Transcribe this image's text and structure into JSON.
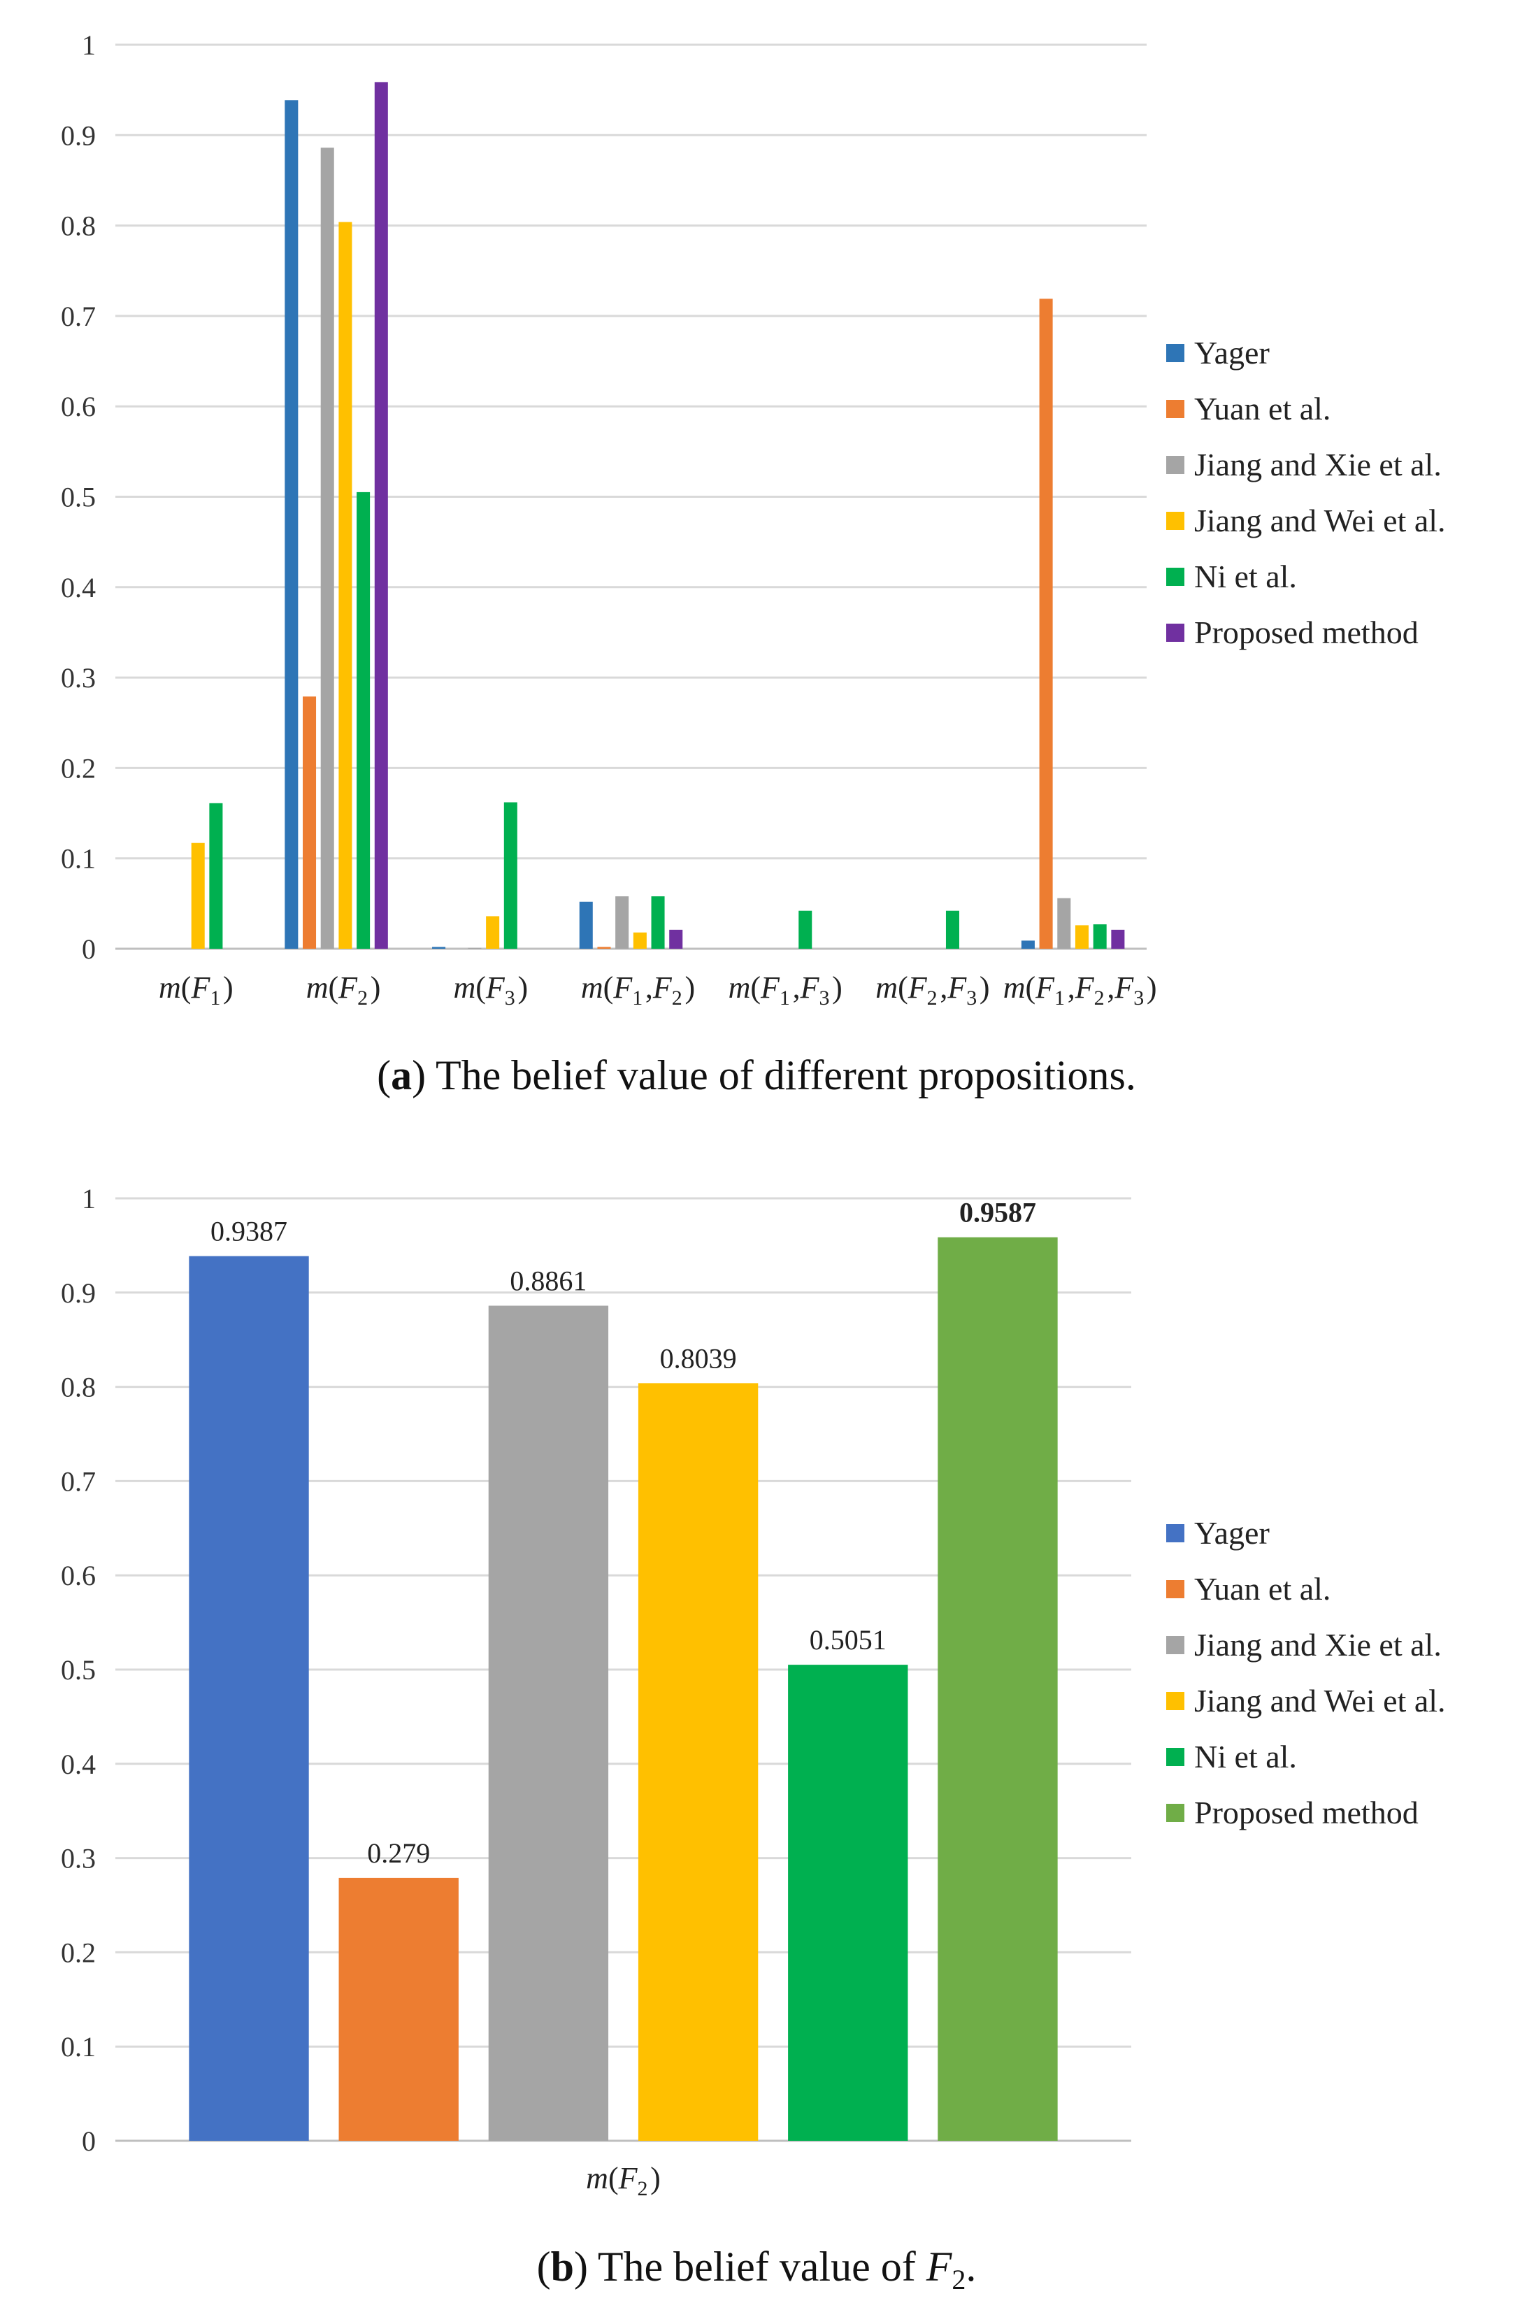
{
  "chart_data": [
    {
      "type": "bar",
      "panel": "a",
      "caption_label": "a",
      "caption_text": " The belief value of different propositions.",
      "categories": [
        {
          "fn": "m",
          "args": [
            "F",
            "1"
          ]
        },
        {
          "fn": "m",
          "args": [
            "F",
            "2"
          ]
        },
        {
          "fn": "m",
          "args": [
            "F",
            "3"
          ]
        },
        {
          "fn": "m",
          "args": [
            "F",
            "1",
            "F",
            "2"
          ]
        },
        {
          "fn": "m",
          "args": [
            "F",
            "1",
            "F",
            "3"
          ]
        },
        {
          "fn": "m",
          "args": [
            "F",
            "2",
            "F",
            "3"
          ]
        },
        {
          "fn": "m",
          "args": [
            "F",
            "1",
            "F",
            "2",
            "F",
            "3"
          ]
        }
      ],
      "ylim": [
        0,
        1
      ],
      "yticks": [
        "0",
        "0.1",
        "0.2",
        "0.3",
        "0.4",
        "0.5",
        "0.6",
        "0.7",
        "0.8",
        "0.9",
        "1"
      ],
      "grid": true,
      "legend_position": "right",
      "series": [
        {
          "name": "Yager",
          "color": "#2e75b6",
          "values": [
            0,
            0.9387,
            0.002,
            0.052,
            0,
            0,
            0.009
          ]
        },
        {
          "name": "Yuan et al.",
          "color": "#ed7d31",
          "values": [
            0,
            0.279,
            0,
            0.002,
            0,
            0,
            0.719
          ]
        },
        {
          "name": "Jiang and Xie et al.",
          "color": "#a5a5a5",
          "values": [
            0,
            0.8861,
            0.001,
            0.058,
            0,
            0,
            0.056
          ]
        },
        {
          "name": "Jiang and Wei et al.",
          "color": "#ffc000",
          "values": [
            0.117,
            0.8039,
            0.036,
            0.018,
            0,
            0,
            0.026
          ]
        },
        {
          "name": "Ni et al.",
          "color": "#00b050",
          "values": [
            0.161,
            0.5051,
            0.162,
            0.058,
            0.042,
            0.042,
            0.027
          ]
        },
        {
          "name": "Proposed method",
          "color": "#7030a0",
          "values": [
            0,
            0.9587,
            0,
            0.021,
            0,
            0,
            0.021
          ]
        }
      ]
    },
    {
      "type": "bar",
      "panel": "b",
      "caption_label": "b",
      "caption_text": " The belief value of ",
      "caption_var": "F",
      "caption_sub": "2",
      "caption_end": ".",
      "categories": [
        {
          "fn": "m",
          "args": [
            "F",
            "2"
          ]
        }
      ],
      "ylim": [
        0,
        1
      ],
      "yticks": [
        "0",
        "0.1",
        "0.2",
        "0.3",
        "0.4",
        "0.5",
        "0.6",
        "0.7",
        "0.8",
        "0.9",
        "1"
      ],
      "grid": true,
      "legend_position": "right",
      "series": [
        {
          "name": "Yager",
          "color": "#4472c4",
          "values": [
            0.9387
          ],
          "label": "0.9387"
        },
        {
          "name": "Yuan et al.",
          "color": "#ed7d31",
          "values": [
            0.279
          ],
          "label": "0.279"
        },
        {
          "name": "Jiang and Xie et al.",
          "color": "#a5a5a5",
          "values": [
            0.8861
          ],
          "label": "0.8861"
        },
        {
          "name": "Jiang and Wei et al.",
          "color": "#ffc000",
          "values": [
            0.8039
          ],
          "label": "0.8039"
        },
        {
          "name": "Ni et al.",
          "color": "#00b050",
          "values": [
            0.5051
          ],
          "label": "0.5051"
        },
        {
          "name": "Proposed method",
          "color": "#70ad47",
          "values": [
            0.9587
          ],
          "label": "0.9587",
          "label_bold": true
        }
      ]
    }
  ]
}
